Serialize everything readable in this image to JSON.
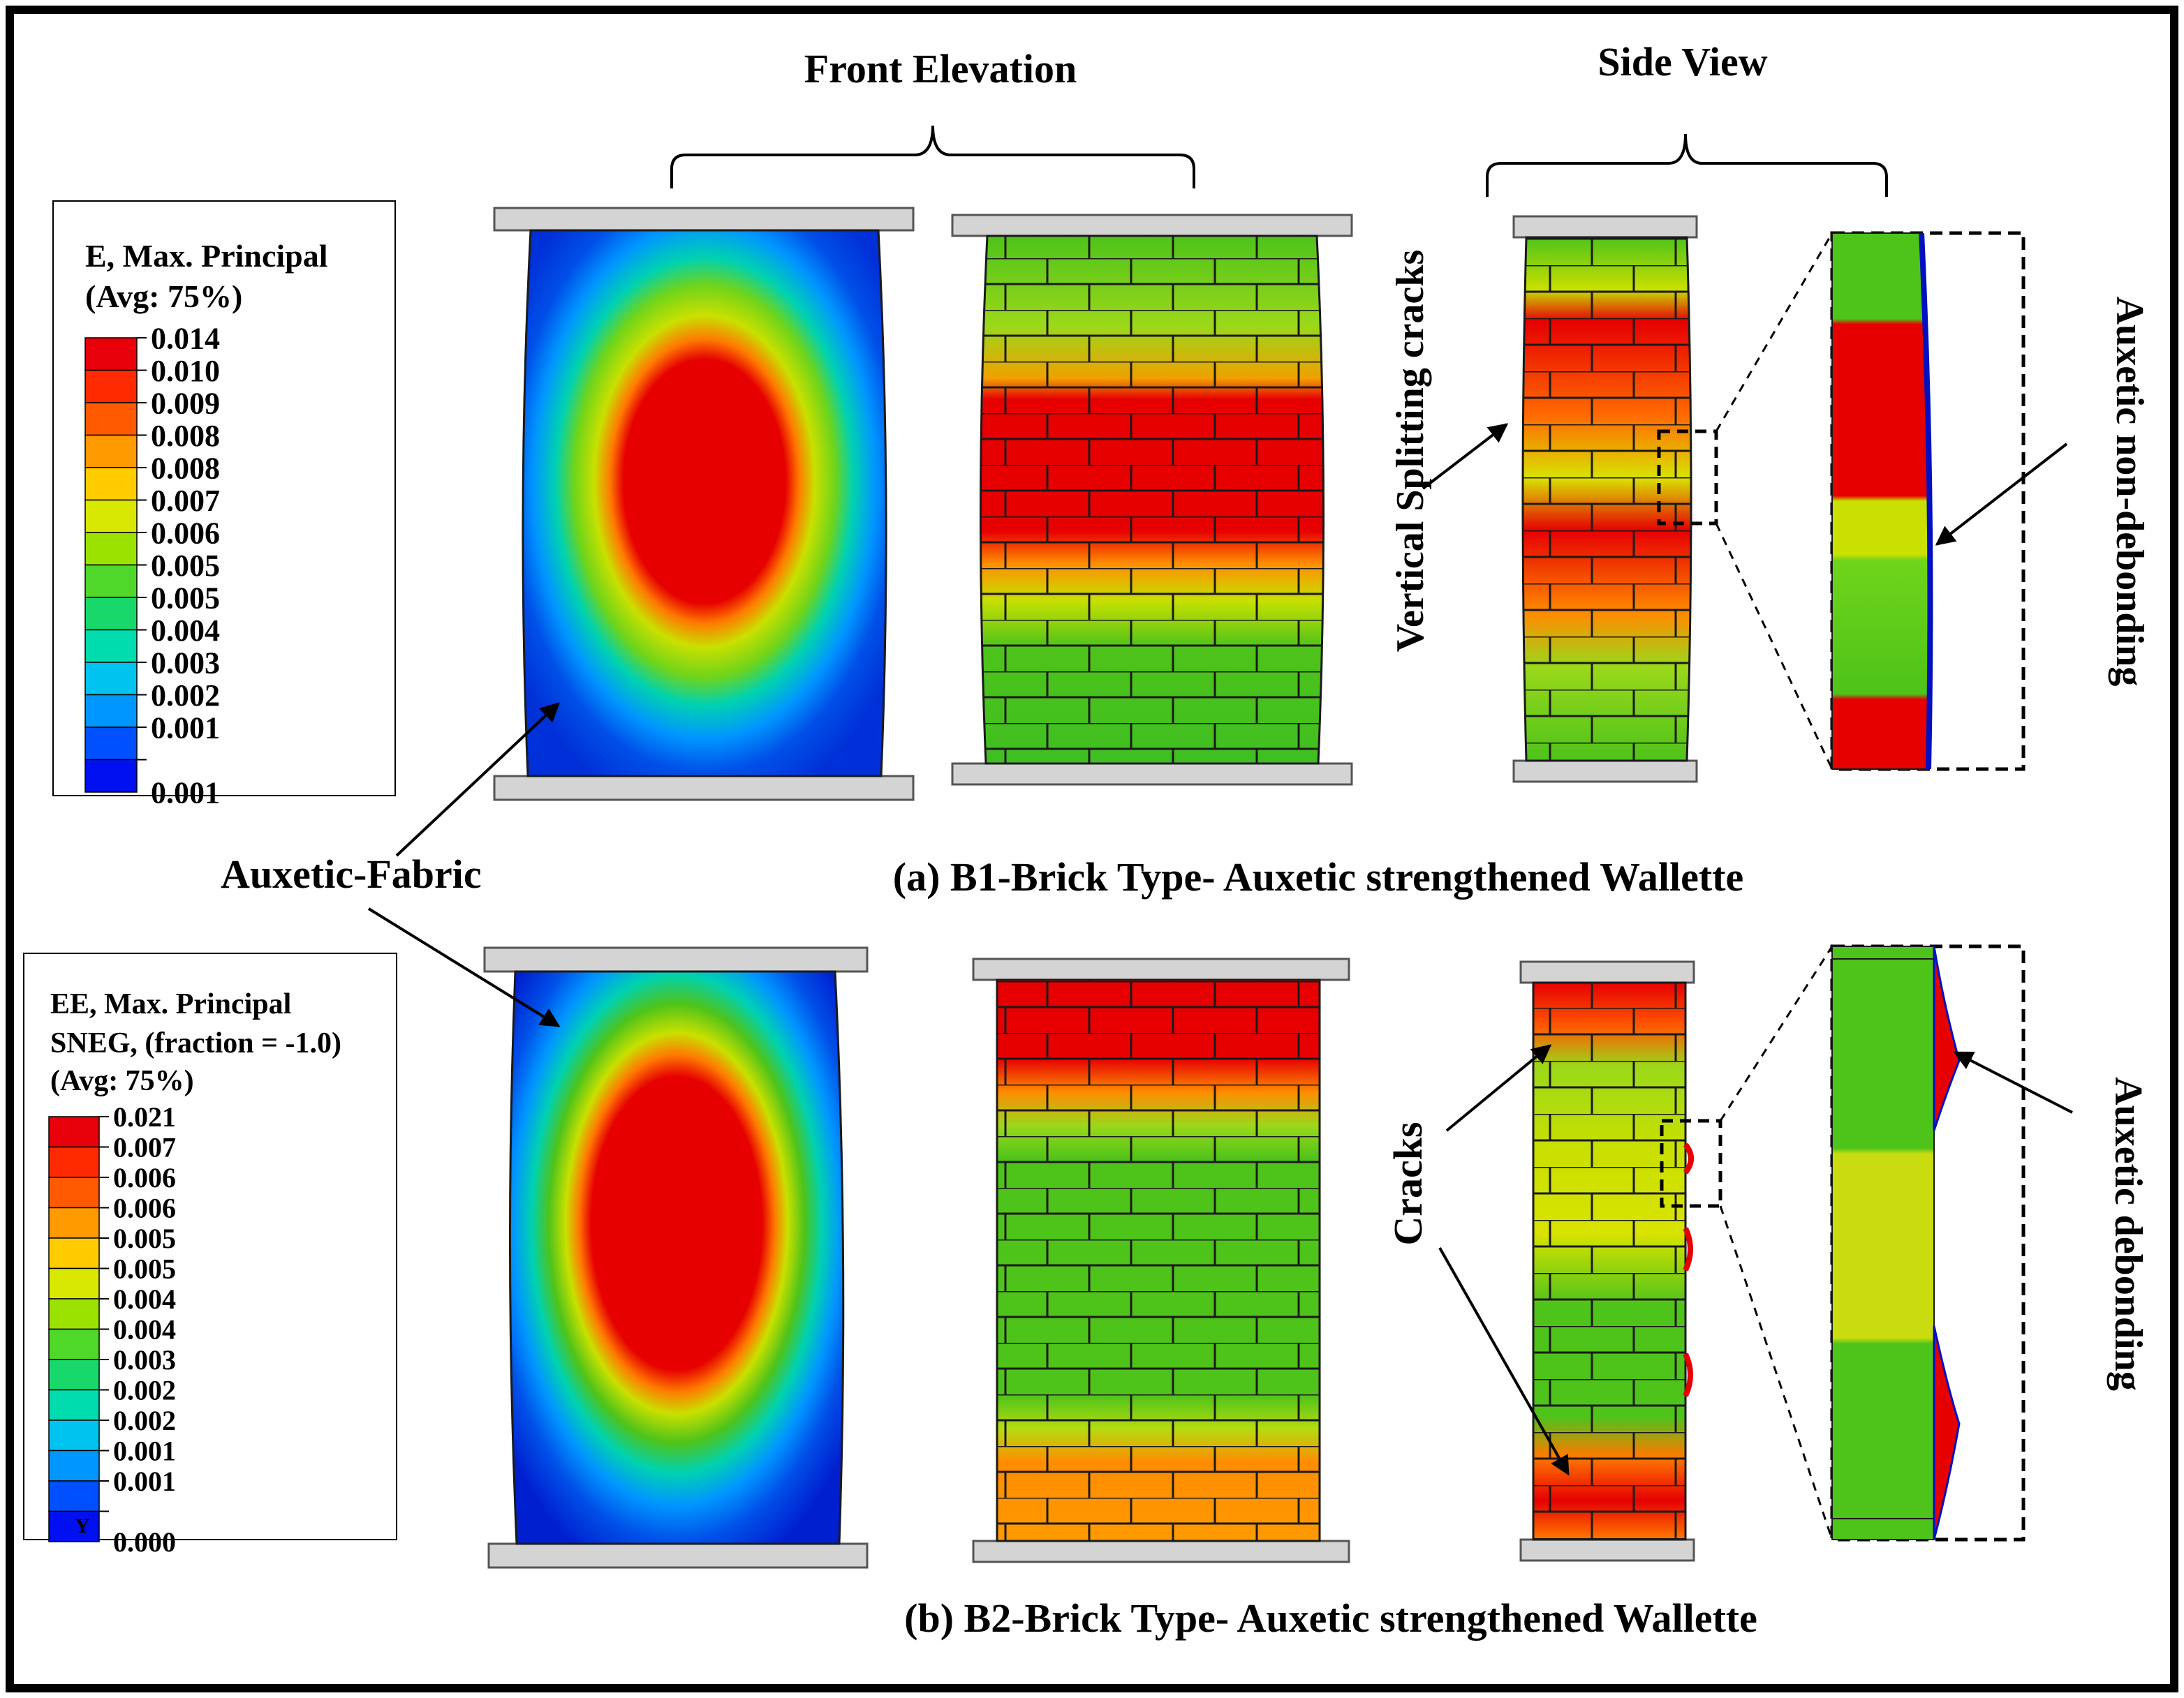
{
  "headings": {
    "front_elevation": "Front Elevation",
    "side_view": "Side View"
  },
  "captions": {
    "a": "(a) B1-Brick Type- Auxetic strengthened Wallette",
    "b": "(b) B2-Brick Type- Auxetic strengthened Wallette"
  },
  "annotations": {
    "auxetic_fabric": "Auxetic-Fabric",
    "vertical_splitting_cracks": "Vertical Splitting cracks",
    "auxetic_non_debonding": "Auxetic non-debonding",
    "cracks": "Cracks",
    "auxetic_debonding": "Auxetic debonding"
  },
  "legend_a": {
    "title_line1": "E, Max. Principal",
    "title_line2": "(Avg: 75%)",
    "values": [
      "0.014",
      "0.010",
      "0.009",
      "0.008",
      "0.008",
      "0.007",
      "0.006",
      "0.005",
      "0.005",
      "0.004",
      "0.003",
      "0.002",
      "0.001",
      "0.001"
    ],
    "colors": [
      "#e8000b",
      "#ff2a00",
      "#ff5a00",
      "#ff9a00",
      "#ffcc00",
      "#d8e800",
      "#9ce200",
      "#4fd82a",
      "#19d86b",
      "#00dcae",
      "#00c3f0",
      "#0096ff",
      "#0050ff",
      "#0010f0"
    ]
  },
  "legend_b": {
    "title_line1": "EE, Max. Principal",
    "title_line2": "SNEG, (fraction = -1.0)",
    "title_line3": "(Avg: 75%)",
    "values": [
      "0.021",
      "0.007",
      "0.006",
      "0.006",
      "0.005",
      "0.005",
      "0.004",
      "0.004",
      "0.003",
      "0.002",
      "0.002",
      "0.001",
      "0.001",
      "0.000"
    ],
    "colors": [
      "#e8000b",
      "#ff2a00",
      "#ff5a00",
      "#ff9a00",
      "#ffcc00",
      "#d8e800",
      "#9ce200",
      "#4fd82a",
      "#19d86b",
      "#00dcae",
      "#00c3f0",
      "#0096ff",
      "#0050ff",
      "#0010f0"
    ],
    "axis_glyph": "Y"
  },
  "palette": {
    "red": "#e60000",
    "orange": "#ff7a00",
    "yellow": "#d9e300",
    "green": "#4ec31a",
    "cyan": "#00d2c0",
    "blue": "#0050e8",
    "platen": "#d4d4d4"
  }
}
